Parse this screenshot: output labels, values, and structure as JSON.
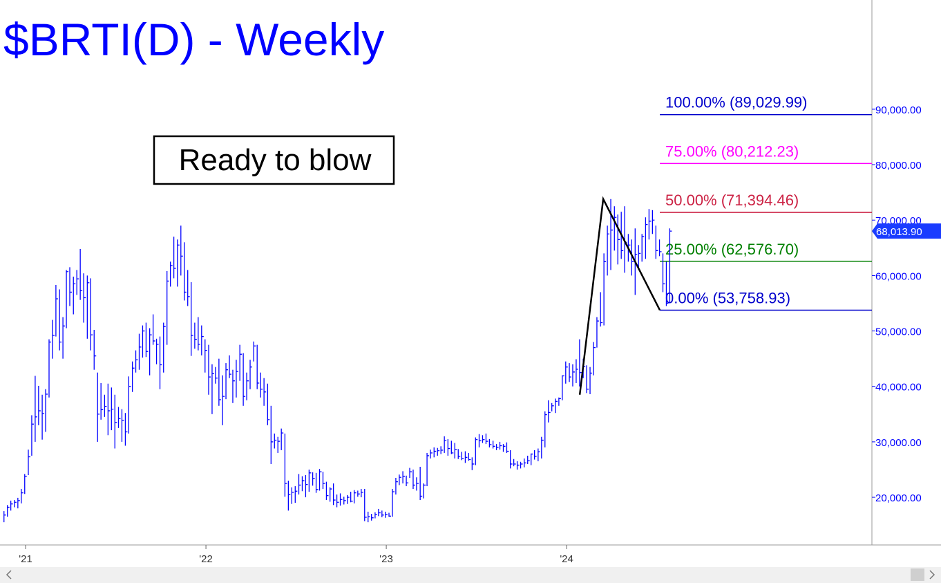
{
  "chart_data": {
    "type": "hlc",
    "title": "$BRTI(D) - Weekly",
    "annotation": "Ready to blow",
    "color": "#0000ff",
    "xlim": [
      2020.858,
      2025.693
    ],
    "ylim": [
      11400,
      109700
    ],
    "xticks": [
      {
        "value": 2021,
        "label": "'21"
      },
      {
        "value": 2022,
        "label": "'22"
      },
      {
        "value": 2023,
        "label": "'23"
      },
      {
        "value": 2024,
        "label": "'24"
      }
    ],
    "yticks": [
      {
        "value": 20000,
        "label": "20,000.00"
      },
      {
        "value": 30000,
        "label": "30,000.00"
      },
      {
        "value": 40000,
        "label": "40,000.00"
      },
      {
        "value": 50000,
        "label": "50,000.00"
      },
      {
        "value": 60000,
        "label": "60,000.00"
      },
      {
        "value": 70000,
        "label": "70,000.00"
      },
      {
        "value": 80000,
        "label": "80,000.00"
      },
      {
        "value": 90000,
        "label": "90,000.00"
      }
    ],
    "last_price": {
      "value": 68013.9,
      "label": "68,013.90"
    },
    "levels": [
      {
        "label": "100.00% (89,029.99)",
        "value": 89029.99,
        "color": "#0000cc"
      },
      {
        "label": "75.00% (80,212.23)",
        "value": 80212.23,
        "color": "#ff00ff"
      },
      {
        "label": "50.00% (71,394.46)",
        "value": 71394.46,
        "color": "#cc2244"
      },
      {
        "label": "25.00% (62,576.70)",
        "value": 62576.7,
        "color": "#008000"
      },
      {
        "label": "0.00% (53,758.93)",
        "value": 53758.93,
        "color": "#0000cc"
      }
    ],
    "trend_line": {
      "x": [
        2024.073,
        2024.203,
        2024.517
      ],
      "y": [
        38500,
        73800,
        53758.93
      ],
      "color": "#000000"
    },
    "x": [
      2020.88,
      2020.899,
      2020.918,
      2020.938,
      2020.957,
      2020.976,
      2020.995,
      2021.015,
      2021.034,
      2021.053,
      2021.072,
      2021.092,
      2021.111,
      2021.13,
      2021.149,
      2021.168,
      2021.188,
      2021.207,
      2021.226,
      2021.245,
      2021.265,
      2021.284,
      2021.303,
      2021.322,
      2021.342,
      2021.361,
      2021.38,
      2021.399,
      2021.418,
      2021.438,
      2021.457,
      2021.476,
      2021.495,
      2021.515,
      2021.534,
      2021.553,
      2021.572,
      2021.592,
      2021.611,
      2021.63,
      2021.649,
      2021.668,
      2021.688,
      2021.707,
      2021.726,
      2021.745,
      2021.765,
      2021.784,
      2021.803,
      2021.822,
      2021.842,
      2021.861,
      2021.88,
      2021.899,
      2021.918,
      2021.938,
      2021.957,
      2021.976,
      2021.995,
      2022.015,
      2022.034,
      2022.053,
      2022.072,
      2022.092,
      2022.111,
      2022.13,
      2022.149,
      2022.168,
      2022.188,
      2022.207,
      2022.226,
      2022.245,
      2022.265,
      2022.284,
      2022.303,
      2022.322,
      2022.342,
      2022.361,
      2022.38,
      2022.399,
      2022.418,
      2022.438,
      2022.457,
      2022.476,
      2022.495,
      2022.515,
      2022.534,
      2022.553,
      2022.572,
      2022.592,
      2022.611,
      2022.63,
      2022.649,
      2022.668,
      2022.688,
      2022.707,
      2022.726,
      2022.745,
      2022.765,
      2022.784,
      2022.803,
      2022.822,
      2022.842,
      2022.861,
      2022.88,
      2022.899,
      2022.918,
      2022.938,
      2022.957,
      2022.976,
      2022.995,
      2023.015,
      2023.034,
      2023.053,
      2023.072,
      2023.092,
      2023.111,
      2023.13,
      2023.149,
      2023.168,
      2023.188,
      2023.207,
      2023.226,
      2023.245,
      2023.265,
      2023.284,
      2023.303,
      2023.322,
      2023.342,
      2023.361,
      2023.38,
      2023.399,
      2023.418,
      2023.438,
      2023.457,
      2023.476,
      2023.495,
      2023.515,
      2023.534,
      2023.553,
      2023.572,
      2023.592,
      2023.611,
      2023.63,
      2023.649,
      2023.668,
      2023.688,
      2023.707,
      2023.726,
      2023.745,
      2023.765,
      2023.784,
      2023.803,
      2023.822,
      2023.842,
      2023.861,
      2023.88,
      2023.899,
      2023.918,
      2023.938,
      2023.957,
      2023.976,
      2023.995,
      2024.015,
      2024.034,
      2024.053,
      2024.072,
      2024.092,
      2024.111,
      2024.13,
      2024.149,
      2024.168,
      2024.188,
      2024.207,
      2024.226,
      2024.245,
      2024.265,
      2024.284,
      2024.303,
      2024.322,
      2024.342,
      2024.361,
      2024.38,
      2024.399,
      2024.418,
      2024.438,
      2024.457,
      2024.476,
      2024.495,
      2024.515,
      2024.534,
      2024.553,
      2024.572
    ],
    "hlc": [
      [
        17500,
        15500,
        16800
      ],
      [
        18600,
        16500,
        18200
      ],
      [
        19400,
        17600,
        18800
      ],
      [
        19500,
        18200,
        19100
      ],
      [
        19900,
        18000,
        19400
      ],
      [
        21500,
        18900,
        20800
      ],
      [
        24200,
        20600,
        23800
      ],
      [
        28600,
        24000,
        27300
      ],
      [
        34800,
        27500,
        33200
      ],
      [
        41900,
        30000,
        34500
      ],
      [
        40100,
        33000,
        35600
      ],
      [
        38500,
        30400,
        35100
      ],
      [
        39500,
        31800,
        38600
      ],
      [
        48500,
        38000,
        48000
      ],
      [
        52000,
        45000,
        49200
      ],
      [
        58300,
        49000,
        55800
      ],
      [
        57500,
        46500,
        48000
      ],
      [
        52500,
        45000,
        50900
      ],
      [
        61000,
        50500,
        60700
      ],
      [
        61500,
        54500,
        57000
      ],
      [
        59800,
        53000,
        58500
      ],
      [
        61000,
        56500,
        59400
      ],
      [
        64800,
        55600,
        57300
      ],
      [
        60400,
        51500,
        56000
      ],
      [
        60000,
        48600,
        58700
      ],
      [
        59500,
        46500,
        49300
      ],
      [
        50200,
        43000,
        45500
      ],
      [
        42500,
        30000,
        35000
      ],
      [
        40600,
        34000,
        35800
      ],
      [
        38500,
        34500,
        36400
      ],
      [
        40500,
        31200,
        35600
      ],
      [
        39800,
        32100,
        35900
      ],
      [
        38500,
        28800,
        33500
      ],
      [
        36300,
        32500,
        34200
      ],
      [
        35900,
        30000,
        33900
      ],
      [
        35200,
        29300,
        31800
      ],
      [
        41800,
        31500,
        40000
      ],
      [
        44500,
        39000,
        43300
      ],
      [
        46500,
        42500,
        44800
      ],
      [
        49500,
        43000,
        47100
      ],
      [
        51000,
        45200,
        50000
      ],
      [
        51500,
        45300,
        46300
      ],
      [
        50500,
        42000,
        49300
      ],
      [
        53000,
        47500,
        48200
      ],
      [
        48600,
        44000,
        47600
      ],
      [
        49000,
        39500,
        43900
      ],
      [
        51500,
        42500,
        50800
      ],
      [
        60800,
        47500,
        59000
      ],
      [
        62500,
        58000,
        61800
      ],
      [
        67000,
        59500,
        61300
      ],
      [
        66500,
        58000,
        65500
      ],
      [
        69000,
        60000,
        63500
      ],
      [
        66000,
        55500,
        57000
      ],
      [
        61000,
        54500,
        56200
      ],
      [
        58800,
        45500,
        49200
      ],
      [
        51500,
        46800,
        48500
      ],
      [
        52500,
        46500,
        47600
      ],
      [
        51000,
        45600,
        49000
      ],
      [
        48500,
        42500,
        46500
      ],
      [
        47500,
        38500,
        41700
      ],
      [
        44000,
        35000,
        42300
      ],
      [
        43500,
        40500,
        41500
      ],
      [
        45000,
        36500,
        37600
      ],
      [
        42000,
        33000,
        38200
      ],
      [
        44200,
        37700,
        43000
      ],
      [
        45600,
        41500,
        42200
      ],
      [
        43000,
        37000,
        41000
      ],
      [
        44800,
        38000,
        42700
      ],
      [
        47500,
        41000,
        45800
      ],
      [
        46000,
        36500,
        38200
      ],
      [
        42500,
        37500,
        41000
      ],
      [
        44800,
        39500,
        43500
      ],
      [
        48100,
        44500,
        47300
      ],
      [
        47500,
        39500,
        40600
      ],
      [
        42500,
        38000,
        39500
      ],
      [
        41500,
        36500,
        39000
      ],
      [
        40500,
        33000,
        34000
      ],
      [
        36500,
        26000,
        30000
      ],
      [
        31500,
        28800,
        30300
      ],
      [
        30900,
        28000,
        30100
      ],
      [
        32400,
        28500,
        31600
      ],
      [
        31500,
        20100,
        22500
      ],
      [
        23000,
        17600,
        20500
      ],
      [
        21800,
        18800,
        20900
      ],
      [
        22000,
        19000,
        21100
      ],
      [
        24200,
        20500,
        22200
      ],
      [
        23800,
        21100,
        23000
      ],
      [
        24000,
        20000,
        22300
      ],
      [
        25000,
        21000,
        24400
      ],
      [
        24500,
        22100,
        23400
      ],
      [
        24400,
        20800,
        21400
      ],
      [
        25100,
        21200,
        24600
      ],
      [
        24600,
        21500,
        22500
      ],
      [
        22800,
        19500,
        20300
      ],
      [
        21800,
        19200,
        21500
      ],
      [
        22500,
        18600,
        19500
      ],
      [
        20500,
        18200,
        19100
      ],
      [
        20700,
        18500,
        19600
      ],
      [
        20100,
        18700,
        19400
      ],
      [
        20400,
        18800,
        20000
      ],
      [
        21000,
        19100,
        19300
      ],
      [
        21300,
        18900,
        20800
      ],
      [
        21200,
        20100,
        20600
      ],
      [
        21500,
        20000,
        20900
      ],
      [
        21500,
        15700,
        16400
      ],
      [
        17400,
        15500,
        16500
      ],
      [
        17000,
        15800,
        16300
      ],
      [
        17300,
        16200,
        16900
      ],
      [
        17900,
        16600,
        17200
      ],
      [
        17600,
        16400,
        16800
      ],
      [
        17400,
        16300,
        16900
      ],
      [
        17200,
        16500,
        16600
      ],
      [
        21500,
        16500,
        21000
      ],
      [
        23500,
        20500,
        22800
      ],
      [
        24100,
        22200,
        23600
      ],
      [
        24700,
        22500,
        23800
      ],
      [
        23900,
        22000,
        22600
      ],
      [
        25300,
        23500,
        24600
      ],
      [
        25000,
        21500,
        22200
      ],
      [
        23600,
        21200,
        22500
      ],
      [
        25500,
        19500,
        20200
      ],
      [
        22500,
        19800,
        22200
      ],
      [
        28000,
        22000,
        27500
      ],
      [
        28600,
        27000,
        28000
      ],
      [
        29000,
        27200,
        28300
      ],
      [
        28900,
        27500,
        28400
      ],
      [
        29200,
        27800,
        28500
      ],
      [
        31000,
        28000,
        30200
      ],
      [
        30500,
        27500,
        28800
      ],
      [
        30200,
        27800,
        28000
      ],
      [
        29800,
        27000,
        28600
      ],
      [
        28700,
        26900,
        27400
      ],
      [
        28200,
        26700,
        27000
      ],
      [
        28300,
        26200,
        27200
      ],
      [
        28000,
        26600,
        26800
      ],
      [
        27200,
        24900,
        26000
      ],
      [
        30800,
        25800,
        30400
      ],
      [
        31400,
        29000,
        30200
      ],
      [
        31200,
        29800,
        30400
      ],
      [
        31500,
        29600,
        30100
      ],
      [
        30500,
        29000,
        29500
      ],
      [
        30200,
        28800,
        29200
      ],
      [
        29600,
        28500,
        29000
      ],
      [
        30000,
        28600,
        29300
      ],
      [
        29600,
        28200,
        29200
      ],
      [
        29900,
        28000,
        28300
      ],
      [
        28500,
        25200,
        26000
      ],
      [
        26900,
        25600,
        26000
      ],
      [
        26500,
        25000,
        25800
      ],
      [
        26400,
        25200,
        26000
      ],
      [
        27000,
        25400,
        26200
      ],
      [
        27500,
        26000,
        26600
      ],
      [
        27900,
        25800,
        27800
      ],
      [
        28500,
        26800,
        27400
      ],
      [
        28800,
        26500,
        28200
      ],
      [
        30900,
        27000,
        30300
      ],
      [
        35500,
        29000,
        34900
      ],
      [
        37500,
        33500,
        35300
      ],
      [
        37000,
        35500,
        36500
      ],
      [
        37800,
        35200,
        37300
      ],
      [
        38000,
        36500,
        37800
      ],
      [
        42000,
        37500,
        41900
      ],
      [
        44500,
        40500,
        43500
      ],
      [
        44200,
        40800,
        41700
      ],
      [
        44000,
        40000,
        42600
      ],
      [
        44900,
        40600,
        43100
      ],
      [
        48500,
        40000,
        42500
      ],
      [
        45000,
        41500,
        43600
      ],
      [
        43800,
        38800,
        39500
      ],
      [
        43500,
        38600,
        42400
      ],
      [
        48000,
        42000,
        47000
      ],
      [
        52500,
        47000,
        51800
      ],
      [
        57000,
        50800,
        51500
      ],
      [
        64000,
        51000,
        62500
      ],
      [
        69000,
        60000,
        67500
      ],
      [
        73800,
        61000,
        68200
      ],
      [
        72500,
        64500,
        70500
      ],
      [
        71000,
        62000,
        66500
      ],
      [
        71500,
        63000,
        64500
      ],
      [
        72500,
        60500,
        66000
      ],
      [
        67500,
        62500,
        65500
      ],
      [
        66500,
        60000,
        62500
      ],
      [
        68500,
        56500,
        63800
      ],
      [
        65500,
        61000,
        64000
      ],
      [
        67500,
        62500,
        67000
      ],
      [
        70500,
        63000,
        69200
      ],
      [
        72000,
        66500,
        69800
      ],
      [
        71800,
        67500,
        70000
      ],
      [
        69000,
        63000,
        64500
      ],
      [
        66500,
        63500,
        64300
      ],
      [
        64000,
        57000,
        58500
      ],
      [
        62500,
        54500,
        55000
      ],
      [
        68500,
        55000,
        68013.9
      ]
    ]
  }
}
